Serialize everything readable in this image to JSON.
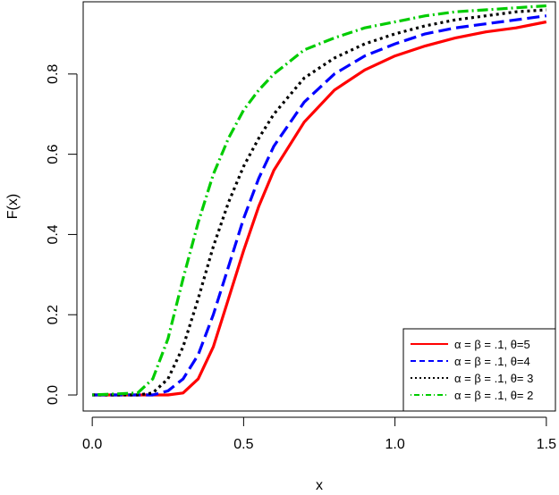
{
  "chart_data": {
    "type": "line",
    "xlabel": "x",
    "ylabel": "F(x)",
    "xlim": [
      -0.03,
      1.53
    ],
    "ylim": [
      -0.04,
      0.98
    ],
    "x_ticks": [
      0.0,
      0.5,
      1.0,
      1.5
    ],
    "x_tick_labels": [
      "0.0",
      "0.5",
      "1.0",
      "1.5"
    ],
    "y_ticks": [
      0.0,
      0.2,
      0.4,
      0.6,
      0.8
    ],
    "y_tick_labels": [
      "0.0",
      "0.2",
      "0.4",
      "0.6",
      "0.8"
    ],
    "grid": false,
    "legend_position": "bottom-right",
    "series": [
      {
        "name": "α = β = .1, θ=5",
        "color": "#ff0000",
        "dash": "solid",
        "x": [
          0.0,
          0.15,
          0.2,
          0.25,
          0.3,
          0.35,
          0.4,
          0.45,
          0.5,
          0.55,
          0.6,
          0.7,
          0.8,
          0.9,
          1.0,
          1.1,
          1.2,
          1.3,
          1.4,
          1.5
        ],
        "y": [
          0.0,
          0.0,
          0.0,
          0.0,
          0.005,
          0.04,
          0.12,
          0.24,
          0.36,
          0.47,
          0.56,
          0.68,
          0.76,
          0.81,
          0.845,
          0.87,
          0.89,
          0.905,
          0.915,
          0.93
        ]
      },
      {
        "name": "α = β = .1, θ=4",
        "color": "#0000ff",
        "dash": "dashed",
        "x": [
          0.0,
          0.15,
          0.2,
          0.25,
          0.3,
          0.35,
          0.4,
          0.45,
          0.5,
          0.55,
          0.6,
          0.7,
          0.8,
          0.9,
          1.0,
          1.1,
          1.2,
          1.3,
          1.4,
          1.5
        ],
        "y": [
          0.0,
          0.0,
          0.0,
          0.01,
          0.04,
          0.1,
          0.2,
          0.32,
          0.44,
          0.54,
          0.62,
          0.73,
          0.8,
          0.845,
          0.875,
          0.9,
          0.915,
          0.925,
          0.935,
          0.945
        ]
      },
      {
        "name": "α = β = .1, θ= 3",
        "color": "#000000",
        "dash": "dotted",
        "x": [
          0.0,
          0.15,
          0.2,
          0.25,
          0.3,
          0.35,
          0.4,
          0.45,
          0.5,
          0.55,
          0.6,
          0.7,
          0.8,
          0.9,
          1.0,
          1.1,
          1.2,
          1.3,
          1.4,
          1.5
        ],
        "y": [
          0.0,
          0.0,
          0.005,
          0.04,
          0.12,
          0.24,
          0.37,
          0.48,
          0.57,
          0.64,
          0.7,
          0.79,
          0.84,
          0.875,
          0.9,
          0.92,
          0.935,
          0.945,
          0.955,
          0.96
        ]
      },
      {
        "name": "α = β = .1, θ= 2",
        "color": "#00cc00",
        "dash": "dotdash",
        "x": [
          0.0,
          0.15,
          0.2,
          0.25,
          0.3,
          0.35,
          0.4,
          0.45,
          0.5,
          0.55,
          0.6,
          0.7,
          0.8,
          0.9,
          1.0,
          1.1,
          1.2,
          1.3,
          1.4,
          1.5
        ],
        "y": [
          0.0,
          0.005,
          0.04,
          0.14,
          0.29,
          0.43,
          0.55,
          0.64,
          0.71,
          0.76,
          0.8,
          0.86,
          0.89,
          0.915,
          0.93,
          0.945,
          0.955,
          0.96,
          0.965,
          0.97
        ]
      }
    ]
  }
}
